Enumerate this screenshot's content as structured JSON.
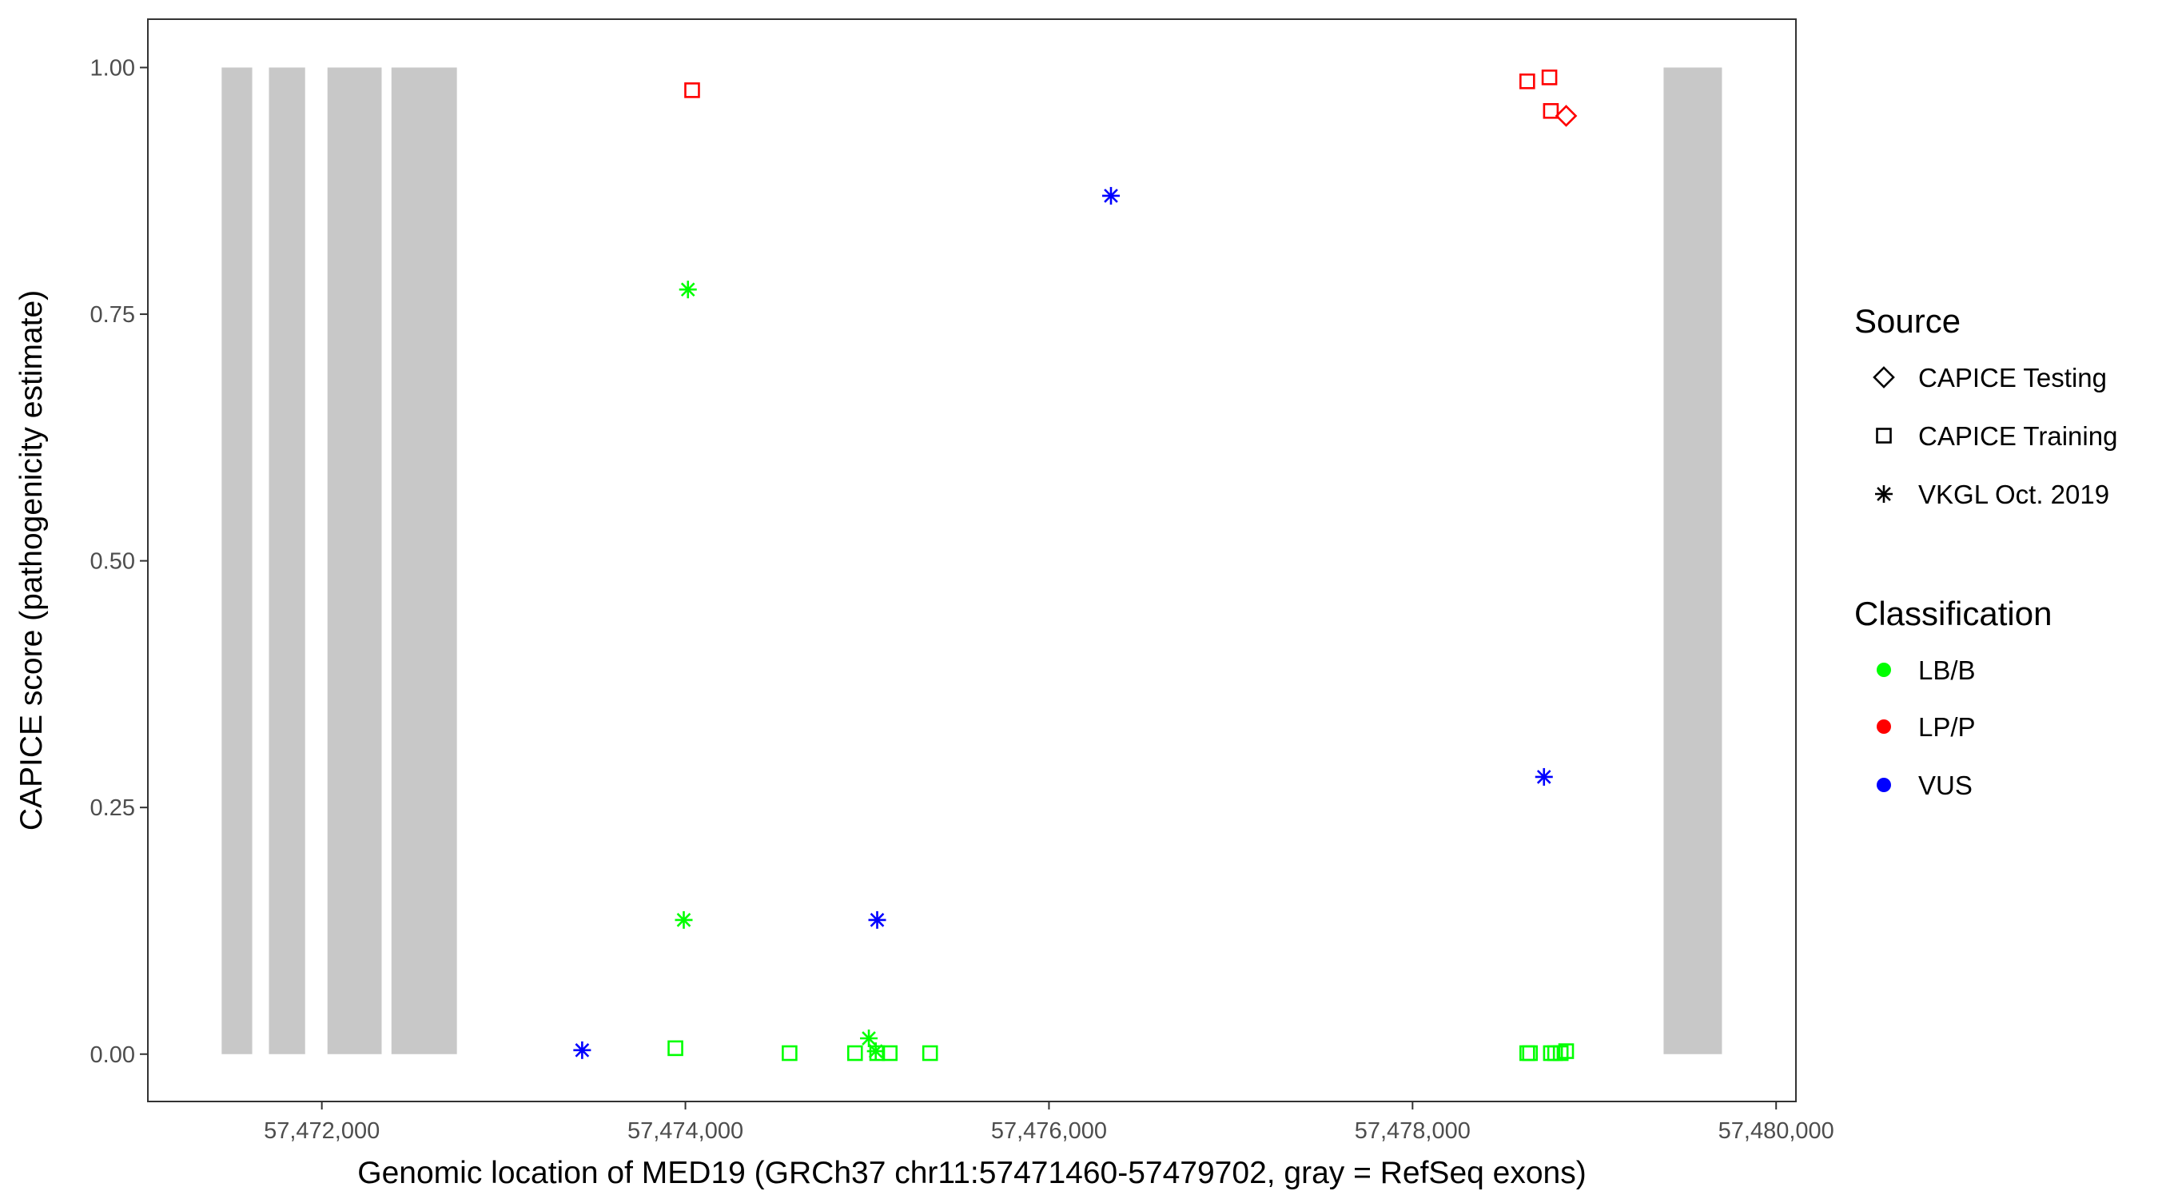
{
  "chart_data": {
    "type": "scatter",
    "xlabel": "Genomic location of MED19 (GRCh37 chr11:57471460-57479702, gray = RefSeq exons)",
    "ylabel": "CAPICE score (pathogenicity estimate)",
    "xlim": [
      57471043,
      57480109
    ],
    "ylim": [
      -0.048,
      1.049
    ],
    "x_ticks": [
      57472000,
      57474000,
      57476000,
      57478000,
      57480000
    ],
    "x_tick_labels": [
      "57,472,000",
      "57,474,000",
      "57,476,000",
      "57,478,000",
      "57,480,000"
    ],
    "y_ticks": [
      0,
      0.25,
      0.5,
      0.75,
      1.0
    ],
    "y_tick_labels": [
      "0.00",
      "0.25",
      "0.50",
      "0.75",
      "1.00"
    ],
    "grid": false,
    "exons": [
      [
        57471449,
        57471617
      ],
      [
        57471709,
        57471908
      ],
      [
        57472031,
        57472329
      ],
      [
        57472383,
        57472743
      ],
      [
        57479381,
        57479702
      ]
    ],
    "exon_color": "#c8c8c8",
    "colors": {
      "LB/B": "#00ff00",
      "LP/P": "#ff0000",
      "VUS": "#0000ff"
    },
    "legend": {
      "position": "right",
      "source_title": "Source",
      "source_items": [
        {
          "label": "CAPICE Testing",
          "shape": "diamond"
        },
        {
          "label": "CAPICE Training",
          "shape": "square"
        },
        {
          "label": "VKGL Oct. 2019",
          "shape": "asterisk"
        }
      ],
      "class_title": "Classification",
      "class_items": [
        {
          "label": "LB/B"
        },
        {
          "label": "LP/P"
        },
        {
          "label": "VUS"
        }
      ]
    },
    "points": [
      {
        "x": 57474037,
        "y": 0.977,
        "source": "square",
        "cls": "LP/P"
      },
      {
        "x": 57478631,
        "y": 0.986,
        "source": "square",
        "cls": "LP/P"
      },
      {
        "x": 57478753,
        "y": 0.99,
        "source": "square",
        "cls": "LP/P"
      },
      {
        "x": 57478761,
        "y": 0.956,
        "source": "square",
        "cls": "LP/P"
      },
      {
        "x": 57478845,
        "y": 0.951,
        "source": "diamond",
        "cls": "LP/P"
      },
      {
        "x": 57476341,
        "y": 0.87,
        "source": "asterisk",
        "cls": "VUS"
      },
      {
        "x": 57474014,
        "y": 0.775,
        "source": "asterisk",
        "cls": "LB/B"
      },
      {
        "x": 57478723,
        "y": 0.281,
        "source": "asterisk",
        "cls": "VUS"
      },
      {
        "x": 57473991,
        "y": 0.136,
        "source": "asterisk",
        "cls": "LB/B"
      },
      {
        "x": 57475055,
        "y": 0.136,
        "source": "asterisk",
        "cls": "VUS"
      },
      {
        "x": 57473432,
        "y": 0.004,
        "source": "asterisk",
        "cls": "VUS"
      },
      {
        "x": 57473945,
        "y": 0.006,
        "source": "square",
        "cls": "LB/B"
      },
      {
        "x": 57474573,
        "y": 0.001,
        "source": "square",
        "cls": "LB/B"
      },
      {
        "x": 57474933,
        "y": 0.001,
        "source": "square",
        "cls": "LB/B"
      },
      {
        "x": 57475009,
        "y": 0.016,
        "source": "asterisk",
        "cls": "LB/B"
      },
      {
        "x": 57475047,
        "y": 0.003,
        "source": "asterisk",
        "cls": "LB/B"
      },
      {
        "x": 57475055,
        "y": 0.001,
        "source": "square",
        "cls": "LB/B"
      },
      {
        "x": 57475124,
        "y": 0.001,
        "source": "square",
        "cls": "LB/B"
      },
      {
        "x": 57475346,
        "y": 0.001,
        "source": "square",
        "cls": "LB/B"
      },
      {
        "x": 57478631,
        "y": 0.001,
        "source": "square",
        "cls": "LB/B"
      },
      {
        "x": 57478646,
        "y": 0.001,
        "source": "square",
        "cls": "LB/B"
      },
      {
        "x": 57478761,
        "y": 0.001,
        "source": "square",
        "cls": "LB/B"
      },
      {
        "x": 57478784,
        "y": 0.001,
        "source": "square",
        "cls": "LB/B"
      },
      {
        "x": 57478815,
        "y": 0.001,
        "source": "square",
        "cls": "LB/B"
      },
      {
        "x": 57478845,
        "y": 0.003,
        "source": "square",
        "cls": "LB/B"
      }
    ]
  }
}
